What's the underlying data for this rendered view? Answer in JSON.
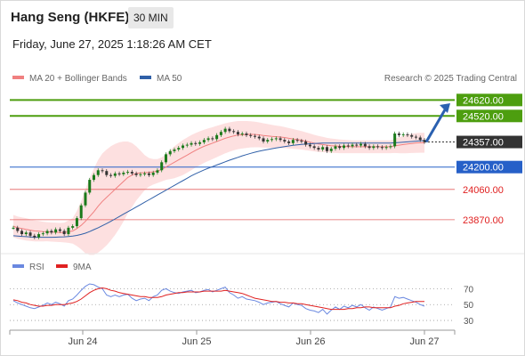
{
  "header": {
    "title": "Hang Seng (HKFE)",
    "interval": "30 MIN",
    "datetime": "Friday, June 27, 2025 1:18:26 AM CET"
  },
  "legend": {
    "ma20_label": "MA 20 + Bollinger Bands",
    "ma50_label": "MA 50",
    "credit": "Research © 2025 Trading Central",
    "rsi_label": "RSI",
    "rsi_ma_label": "9MA"
  },
  "colors": {
    "resistance": "#4d9e0f",
    "current": "#333333",
    "pivot": "#2660c8",
    "support": "#e36060",
    "ma20": "#f08080",
    "ma50": "#3060a8",
    "bollinger_fill": "#fde0e0",
    "candle_up": "#1a7a1a",
    "candle_down": "#333333",
    "rsi": "#6a88e0",
    "rsi_ma": "#e02020",
    "arrow": "#2a60b0"
  },
  "chart_data": {
    "type": "candlestick",
    "ylim": [
      23680,
      24700
    ],
    "levels": [
      {
        "label": "24620.00",
        "value": 24620,
        "kind": "resistance"
      },
      {
        "label": "24520.00",
        "value": 24520,
        "kind": "resistance"
      },
      {
        "label": "24357.00",
        "value": 24357,
        "kind": "current"
      },
      {
        "label": "24200.00",
        "value": 24200,
        "kind": "pivot"
      },
      {
        "label": "24060.00",
        "value": 24060,
        "kind": "support"
      },
      {
        "label": "23870.00",
        "value": 23870,
        "kind": "support"
      }
    ],
    "x_ticks": [
      "Jun 24",
      "Jun 25",
      "Jun 26",
      "Jun 27"
    ],
    "close": [
      23820,
      23800,
      23780,
      23790,
      23770,
      23760,
      23780,
      23785,
      23800,
      23790,
      23810,
      23800,
      23780,
      23820,
      23830,
      23880,
      23960,
      24040,
      24120,
      24150,
      24180,
      24175,
      24150,
      24145,
      24160,
      24155,
      24165,
      24170,
      24160,
      24150,
      24155,
      24160,
      24150,
      24165,
      24180,
      24230,
      24280,
      24300,
      24310,
      24320,
      24335,
      24340,
      24350,
      24345,
      24355,
      24370,
      24380,
      24375,
      24400,
      24420,
      24440,
      24425,
      24420,
      24405,
      24410,
      24400,
      24395,
      24390,
      24380,
      24360,
      24370,
      24375,
      24380,
      24370,
      24360,
      24350,
      24370,
      24365,
      24360,
      24340,
      24330,
      24320,
      24310,
      24325,
      24300,
      24315,
      24330,
      24320,
      24335,
      24330,
      24340,
      24335,
      24345,
      24330,
      24320,
      24330,
      24325,
      24320,
      24325,
      24330,
      24410,
      24400,
      24405,
      24400,
      24390,
      24385,
      24370,
      24357
    ],
    "ma20": [
      23830,
      23820,
      23815,
      23810,
      23805,
      23800,
      23798,
      23796,
      23795,
      23793,
      23792,
      23790,
      23790,
      23795,
      23800,
      23815,
      23835,
      23860,
      23890,
      23920,
      23955,
      23985,
      24010,
      24035,
      24060,
      24085,
      24110,
      24135,
      24150,
      24160,
      24163,
      24165,
      24167,
      24170,
      24175,
      24185,
      24200,
      24215,
      24230,
      24245,
      24260,
      24275,
      24290,
      24305,
      24318,
      24330,
      24340,
      24350,
      24360,
      24370,
      24380,
      24388,
      24395,
      24400,
      24402,
      24404,
      24405,
      24404,
      24402,
      24398,
      24395,
      24392,
      24390,
      24388,
      24385,
      24380,
      24376,
      24372,
      24368,
      24362,
      24356,
      24350,
      24345,
      24341,
      24337,
      24334,
      24332,
      24330,
      24329,
      24328,
      24327,
      24327,
      24327,
      24327,
      24327,
      24327,
      24327,
      24327,
      24327,
      24327,
      24333,
      24337,
      24341,
      24345,
      24348,
      24351,
      24352,
      24352
    ],
    "bollinger_width": [
      70,
      70,
      70,
      70,
      68,
      66,
      64,
      62,
      60,
      60,
      60,
      60,
      62,
      70,
      80,
      110,
      150,
      200,
      240,
      270,
      290,
      300,
      300,
      295,
      285,
      270,
      250,
      225,
      200,
      170,
      140,
      110,
      90,
      80,
      75,
      75,
      80,
      90,
      100,
      105,
      110,
      110,
      110,
      108,
      106,
      104,
      102,
      100,
      98,
      96,
      94,
      92,
      90,
      88,
      86,
      84,
      82,
      80,
      78,
      76,
      74,
      72,
      70,
      68,
      66,
      64,
      62,
      60,
      58,
      56,
      54,
      52,
      50,
      48,
      46,
      45,
      44,
      43,
      42,
      41,
      40,
      40,
      40,
      40,
      40,
      40,
      40,
      40,
      40,
      40,
      45,
      50,
      55,
      58,
      60,
      62,
      62,
      62
    ],
    "ma50": [
      23770,
      23768,
      23766,
      23764,
      23762,
      23760,
      23760,
      23760,
      23760,
      23760,
      23761,
      23762,
      23763,
      23765,
      23768,
      23772,
      23778,
      23786,
      23796,
      23808,
      23820,
      23833,
      23846,
      23860,
      23875,
      23890,
      23905,
      23920,
      23935,
      23950,
      23965,
      23980,
      23995,
      24010,
      24025,
      24040,
      24055,
      24070,
      24085,
      24100,
      24115,
      24130,
      24145,
      24158,
      24170,
      24182,
      24193,
      24203,
      24213,
      24223,
      24233,
      24243,
      24252,
      24261,
      24270,
      24278,
      24286,
      24293,
      24299,
      24305,
      24310,
      24315,
      24320,
      24324,
      24328,
      24332,
      24336,
      24339,
      24342,
      24344,
      24346,
      24348,
      24349,
      24350,
      24350,
      24350,
      24350,
      24350,
      24350,
      24350,
      24350,
      24350,
      24350,
      24350,
      24350,
      24350,
      24350,
      24350,
      24350,
      24350,
      24352,
      24354,
      24356,
      24358,
      24360,
      24362,
      24364,
      24366
    ],
    "rsi_ylim": [
      20,
      85
    ],
    "rsi_ticks": [
      70,
      50,
      30
    ],
    "rsi": [
      55,
      52,
      50,
      48,
      46,
      45,
      47,
      49,
      52,
      50,
      53,
      51,
      48,
      55,
      57,
      62,
      68,
      73,
      76,
      75,
      72,
      70,
      62,
      60,
      62,
      60,
      62,
      63,
      58,
      55,
      57,
      58,
      55,
      60,
      62,
      68,
      70,
      67,
      65,
      64,
      66,
      67,
      68,
      65,
      66,
      68,
      69,
      66,
      68,
      70,
      72,
      65,
      62,
      58,
      60,
      57,
      56,
      55,
      53,
      50,
      52,
      53,
      54,
      51,
      49,
      47,
      52,
      50,
      49,
      45,
      43,
      42,
      40,
      44,
      38,
      43,
      47,
      44,
      48,
      46,
      49,
      47,
      50,
      46,
      43,
      47,
      45,
      43,
      45,
      47,
      60,
      58,
      59,
      57,
      55,
      53,
      50,
      48
    ],
    "rsi_ma": [
      56,
      55,
      53,
      52,
      50,
      49,
      48,
      48,
      49,
      49,
      50,
      50,
      50,
      51,
      52,
      54,
      57,
      61,
      65,
      68,
      70,
      71,
      70,
      68,
      67,
      65,
      64,
      63,
      62,
      61,
      60,
      60,
      59,
      59,
      59,
      60,
      62,
      63,
      64,
      65,
      65,
      66,
      66,
      66,
      66,
      67,
      67,
      67,
      67,
      67,
      68,
      67,
      66,
      65,
      64,
      62,
      60,
      58,
      57,
      56,
      55,
      54,
      54,
      53,
      53,
      52,
      52,
      51,
      51,
      50,
      49,
      48,
      47,
      46,
      45,
      44,
      44,
      44,
      44,
      45,
      45,
      46,
      46,
      47,
      47,
      46,
      46,
      46,
      46,
      46,
      48,
      49,
      51,
      52,
      53,
      54,
      54,
      54
    ]
  }
}
